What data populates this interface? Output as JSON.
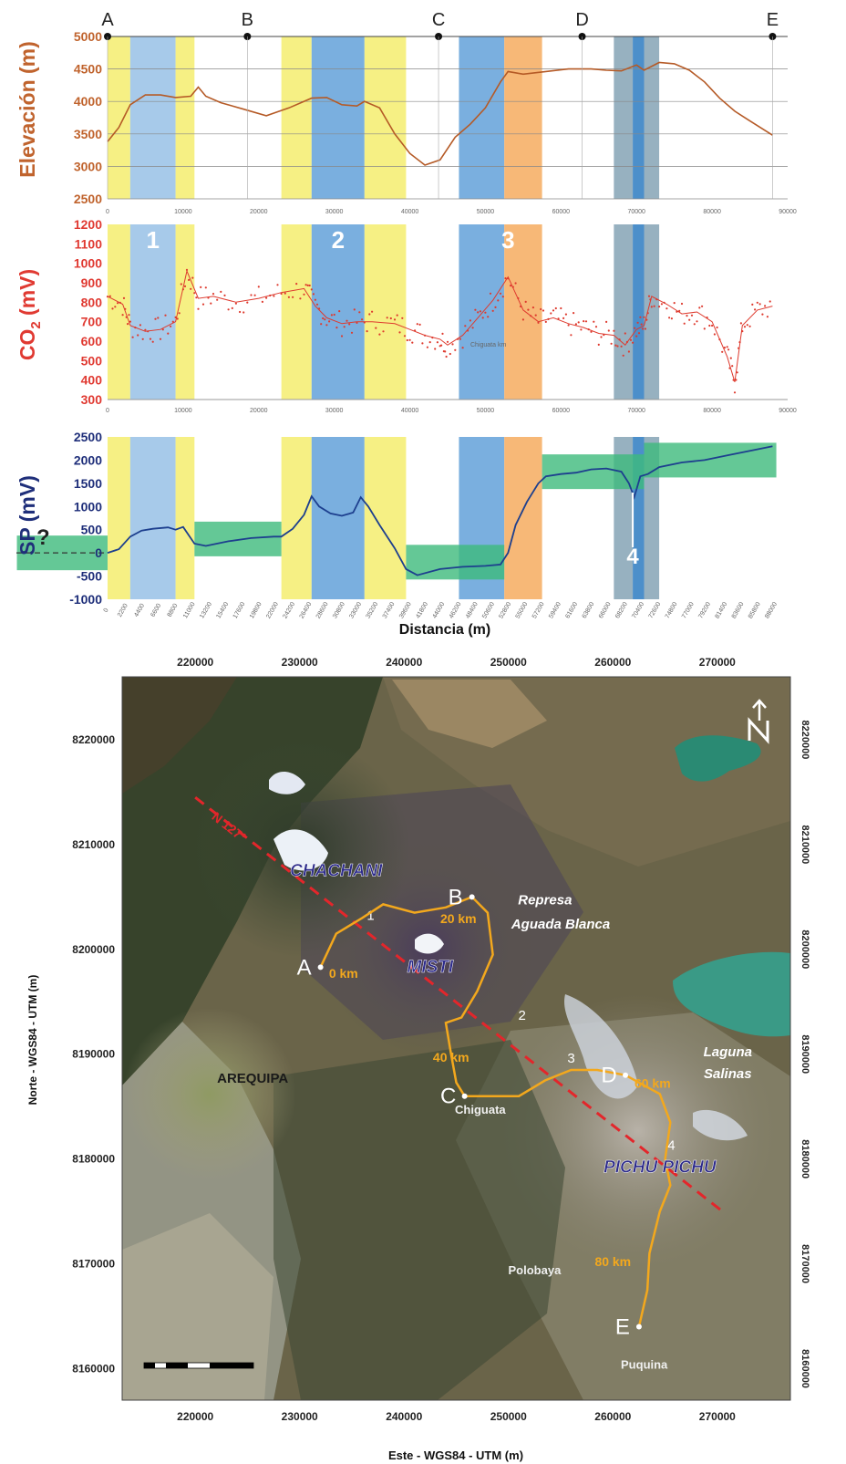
{
  "chart_data": [
    {
      "type": "line",
      "ylabel": "Elevación (m)",
      "ylim": [
        2500,
        5000
      ],
      "yticks": [
        2500,
        3000,
        3500,
        4000,
        4500,
        5000
      ],
      "xlim": [
        0,
        90000
      ],
      "xticks": [
        0,
        10000,
        20000,
        30000,
        40000,
        50000,
        60000,
        70000,
        80000,
        90000
      ],
      "grid": true,
      "point_labels": [
        {
          "label": "A",
          "x": 0
        },
        {
          "label": "B",
          "x": 18500
        },
        {
          "label": "C",
          "x": 43800
        },
        {
          "label": "D",
          "x": 62800
        },
        {
          "label": "E",
          "x": 88000
        }
      ],
      "series": [
        {
          "x": [
            0,
            1500,
            3000,
            5000,
            7000,
            9000,
            11000,
            12000,
            13000,
            15000,
            18000,
            21000,
            24000,
            27000,
            29000,
            31000,
            33000,
            34000,
            36000,
            38000,
            40000,
            42000,
            44000,
            46000,
            48000,
            50000,
            52000,
            53000,
            55000,
            58000,
            61000,
            64000,
            66000,
            68000,
            70000,
            71000,
            73000,
            75000,
            77000,
            79000,
            81000,
            83000,
            85000,
            88000
          ],
          "y": [
            3380,
            3600,
            3950,
            4100,
            4100,
            4060,
            4080,
            4220,
            4080,
            3980,
            3880,
            3780,
            3900,
            4050,
            4060,
            3950,
            3930,
            4000,
            3900,
            3500,
            3200,
            3020,
            3100,
            3450,
            3650,
            3900,
            4300,
            4460,
            4420,
            4460,
            4500,
            4500,
            4480,
            4470,
            4560,
            4480,
            4600,
            4580,
            4480,
            4300,
            4050,
            3850,
            3700,
            3480
          ]
        }
      ],
      "bands": [
        {
          "from": 0,
          "to": 3000,
          "color": "#f5ef7a"
        },
        {
          "from": 3000,
          "to": 9000,
          "color": "#9fc5e8"
        },
        {
          "from": 9000,
          "to": 11500,
          "color": "#f5ef7a"
        },
        {
          "from": 23000,
          "to": 27000,
          "color": "#f5ef7a"
        },
        {
          "from": 27000,
          "to": 34000,
          "color": "#6fa8dc"
        },
        {
          "from": 34000,
          "to": 39500,
          "color": "#f5ef7a"
        },
        {
          "from": 46500,
          "to": 52500,
          "color": "#6fa8dc"
        },
        {
          "from": 52500,
          "to": 57500,
          "color": "#f6b26b"
        },
        {
          "from": 67000,
          "to": 69500,
          "color": "#8eaabb"
        },
        {
          "from": 69500,
          "to": 71000,
          "color": "#3d85c6"
        },
        {
          "from": 71000,
          "to": 73000,
          "color": "#8eaabb"
        }
      ]
    },
    {
      "type": "line",
      "ylabel_main": "CO",
      "ylabel_sub": "2",
      "ylabel_unit": " (mV)",
      "ylim": [
        300,
        1200
      ],
      "yticks": [
        300,
        400,
        500,
        600,
        700,
        800,
        900,
        1000,
        1100,
        1200
      ],
      "xlim": [
        0,
        90000
      ],
      "xticks": [
        0,
        10000,
        20000,
        30000,
        40000,
        50000,
        60000,
        70000,
        80000,
        90000
      ],
      "zone_numbers": [
        {
          "label": "1",
          "x": 6000
        },
        {
          "label": "2",
          "x": 30500
        },
        {
          "label": "3",
          "x": 53000
        }
      ],
      "annotation": "Chiguata km",
      "series": [
        {
          "x": [
            0,
            2000,
            3000,
            5000,
            7000,
            9000,
            10500,
            12000,
            14000,
            17000,
            20000,
            23000,
            26000,
            27500,
            29000,
            31000,
            33000,
            35000,
            38000,
            40000,
            42000,
            44000,
            45000,
            47000,
            49000,
            51000,
            53000,
            55000,
            57000,
            59000,
            61000,
            63000,
            65000,
            67000,
            68500,
            70000,
            71000,
            72000,
            74000,
            76000,
            78000,
            80000,
            82000,
            83000,
            84000,
            86000,
            88000
          ],
          "y": [
            830,
            790,
            680,
            650,
            660,
            700,
            960,
            820,
            830,
            800,
            820,
            850,
            870,
            780,
            720,
            690,
            700,
            700,
            690,
            660,
            630,
            610,
            580,
            630,
            720,
            810,
            930,
            760,
            700,
            720,
            690,
            670,
            640,
            630,
            580,
            660,
            680,
            830,
            790,
            740,
            750,
            700,
            520,
            390,
            680,
            760,
            780
          ]
        }
      ],
      "bands": [
        {
          "from": 0,
          "to": 3000,
          "color": "#f5ef7a"
        },
        {
          "from": 3000,
          "to": 9000,
          "color": "#9fc5e8"
        },
        {
          "from": 9000,
          "to": 11500,
          "color": "#f5ef7a"
        },
        {
          "from": 23000,
          "to": 27000,
          "color": "#f5ef7a"
        },
        {
          "from": 27000,
          "to": 34000,
          "color": "#6fa8dc"
        },
        {
          "from": 34000,
          "to": 39500,
          "color": "#f5ef7a"
        },
        {
          "from": 46500,
          "to": 52500,
          "color": "#6fa8dc"
        },
        {
          "from": 52500,
          "to": 57500,
          "color": "#f6b26b"
        },
        {
          "from": 67000,
          "to": 69500,
          "color": "#8eaabb"
        },
        {
          "from": 69500,
          "to": 71000,
          "color": "#3d85c6"
        },
        {
          "from": 71000,
          "to": 73000,
          "color": "#8eaabb"
        }
      ]
    },
    {
      "type": "line",
      "ylabel": "SP (mV)",
      "xlabel": "Distancia (m)",
      "ylim": [
        -1000,
        2500
      ],
      "yticks": [
        -1000,
        -500,
        0,
        500,
        1000,
        1500,
        2000,
        2500
      ],
      "xlim": [
        0,
        90000
      ],
      "question_mark": "?",
      "zone_numbers": [
        {
          "label": "4",
          "x": 69500
        }
      ],
      "green_segments": [
        {
          "from": -12000,
          "to": 0,
          "level": 0
        },
        {
          "from": 11500,
          "to": 23000,
          "level": 300
        },
        {
          "from": 39500,
          "to": 52500,
          "level": -200
        },
        {
          "from": 57500,
          "to": 71000,
          "level": 1750
        },
        {
          "from": 71000,
          "to": 88500,
          "level": 2000
        }
      ],
      "series": [
        {
          "x": [
            0,
            1500,
            3000,
            4500,
            6000,
            8000,
            9000,
            10000,
            11500,
            13000,
            16000,
            19000,
            22000,
            23000,
            24500,
            26000,
            27000,
            28000,
            29500,
            31000,
            32500,
            33500,
            34500,
            36000,
            38000,
            39500,
            41000,
            44000,
            47000,
            50000,
            52000,
            53000,
            54000,
            55500,
            57000,
            58000,
            60000,
            62000,
            64000,
            66000,
            68000,
            69000,
            69700,
            70500,
            71500,
            73000,
            76000,
            79000,
            82000,
            85000,
            88000
          ],
          "y": [
            0,
            80,
            350,
            480,
            520,
            550,
            500,
            560,
            200,
            150,
            250,
            320,
            350,
            350,
            520,
            820,
            1220,
            1000,
            850,
            800,
            870,
            1200,
            1000,
            600,
            100,
            -350,
            -480,
            -350,
            -300,
            -280,
            -250,
            0,
            600,
            1100,
            1500,
            1650,
            1700,
            1730,
            1800,
            1820,
            1750,
            1500,
            1200,
            1650,
            1700,
            1850,
            1950,
            2000,
            2100,
            2200,
            2300
          ]
        }
      ],
      "bands": [
        {
          "from": 0,
          "to": 3000,
          "color": "#f5ef7a"
        },
        {
          "from": 3000,
          "to": 9000,
          "color": "#9fc5e8"
        },
        {
          "from": 9000,
          "to": 11500,
          "color": "#f5ef7a"
        },
        {
          "from": 23000,
          "to": 27000,
          "color": "#f5ef7a"
        },
        {
          "from": 27000,
          "to": 34000,
          "color": "#6fa8dc"
        },
        {
          "from": 34000,
          "to": 39500,
          "color": "#f5ef7a"
        },
        {
          "from": 46500,
          "to": 52500,
          "color": "#6fa8dc"
        },
        {
          "from": 52500,
          "to": 57500,
          "color": "#f6b26b"
        },
        {
          "from": 67000,
          "to": 69500,
          "color": "#8eaabb"
        },
        {
          "from": 69500,
          "to": 71000,
          "color": "#3d85c6"
        },
        {
          "from": 71000,
          "to": 73000,
          "color": "#8eaabb"
        }
      ]
    },
    {
      "type": "map",
      "xlabel": "Este - WGS84 - UTM (m)",
      "ylabel": "Norte - WGS84 - UTM (m)",
      "xlim": [
        213000,
        277000
      ],
      "ylim": [
        8157000,
        8226000
      ],
      "xticks": [
        220000,
        230000,
        240000,
        250000,
        260000,
        270000
      ],
      "yticks": [
        8160000,
        8170000,
        8180000,
        8190000,
        8200000,
        8210000,
        8220000
      ],
      "place_labels": [
        {
          "text": "CHACHANI",
          "e": 233500,
          "n": 8207000
        },
        {
          "text": "MISTI",
          "e": 242500,
          "n": 8197800
        },
        {
          "text": "AREQUIPA",
          "e": 225500,
          "n": 8187300
        },
        {
          "text": "Represa",
          "e": 253500,
          "n": 8204300
        },
        {
          "text": "Aguada Blanca",
          "e": 255000,
          "n": 8202000
        },
        {
          "text": "Chiguata",
          "e": 247300,
          "n": 8184300
        },
        {
          "text": "Laguna",
          "e": 271000,
          "n": 8189800
        },
        {
          "text": "Salinas",
          "e": 271000,
          "n": 8187700
        },
        {
          "text": "PICHU PICHU",
          "e": 264500,
          "n": 8178700
        },
        {
          "text": "Polobaya",
          "e": 252500,
          "n": 8169000
        },
        {
          "text": "Puquina",
          "e": 263000,
          "n": 8160000
        }
      ],
      "route_points": [
        {
          "label": "A",
          "e": 232000,
          "n": 8198300
        },
        {
          "label": "B",
          "e": 246500,
          "n": 8205000
        },
        {
          "label": "C",
          "e": 245800,
          "n": 8186000
        },
        {
          "label": "D",
          "e": 261200,
          "n": 8188000
        },
        {
          "label": "E",
          "e": 262500,
          "n": 8164000
        }
      ],
      "km_labels": [
        {
          "text": "0 km",
          "e": 234200,
          "n": 8197300
        },
        {
          "text": "20 km",
          "e": 245200,
          "n": 8202500
        },
        {
          "text": "40 km",
          "e": 244500,
          "n": 8189300
        },
        {
          "text": "60 km",
          "e": 263800,
          "n": 8186800
        },
        {
          "text": "80 km",
          "e": 260000,
          "n": 8169800
        }
      ],
      "fault_label": "N 127°",
      "fault_crossings": [
        {
          "label": "1",
          "e": 236800,
          "n": 8202800
        },
        {
          "label": "2",
          "e": 251300,
          "n": 8193300
        },
        {
          "label": "3",
          "e": 256000,
          "n": 8189200
        },
        {
          "label": "4",
          "e": 265600,
          "n": 8180900
        }
      ],
      "route_path": [
        [
          232000,
          8198300
        ],
        [
          233500,
          8201500
        ],
        [
          236000,
          8203000
        ],
        [
          238000,
          8204300
        ],
        [
          241000,
          8203500
        ],
        [
          244000,
          8204000
        ],
        [
          246500,
          8205000
        ],
        [
          248000,
          8203500
        ],
        [
          248500,
          8199500
        ],
        [
          247000,
          8196000
        ],
        [
          245500,
          8193500
        ],
        [
          244000,
          8193000
        ],
        [
          244500,
          8190000
        ],
        [
          245000,
          8187300
        ],
        [
          245800,
          8186000
        ],
        [
          248000,
          8186000
        ],
        [
          251000,
          8186000
        ],
        [
          253500,
          8187500
        ],
        [
          256000,
          8188500
        ],
        [
          258500,
          8188500
        ],
        [
          261200,
          8188000
        ],
        [
          264500,
          8186200
        ],
        [
          265500,
          8183500
        ],
        [
          265000,
          8180000
        ],
        [
          265500,
          8177500
        ],
        [
          264500,
          8175000
        ],
        [
          263500,
          8171000
        ],
        [
          263300,
          8167500
        ],
        [
          262500,
          8164000
        ]
      ],
      "fault_line": [
        [
          220000,
          8214500
        ],
        [
          270500,
          8175000
        ]
      ]
    }
  ]
}
